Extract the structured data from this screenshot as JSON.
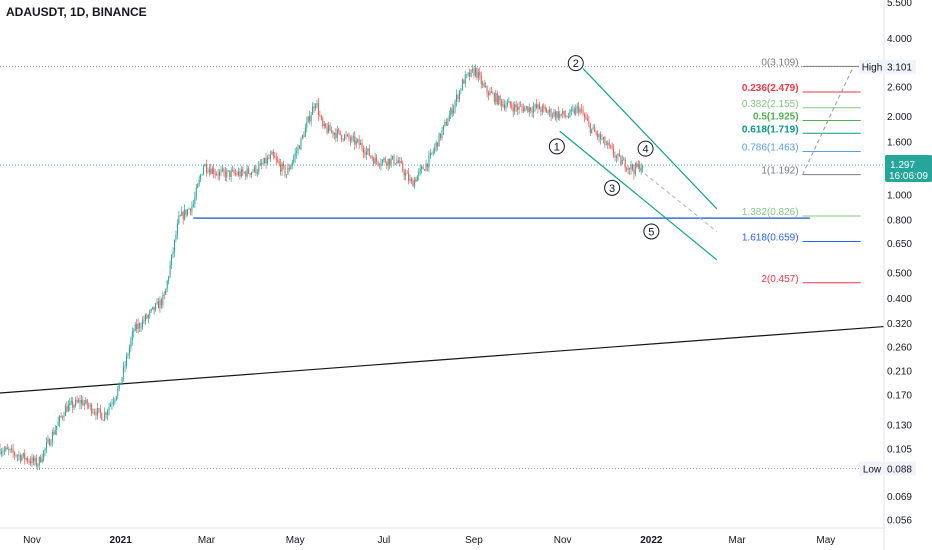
{
  "header": {
    "symbol": "ADAUSDT, 1D, BINANCE"
  },
  "colors": {
    "up": "#26a69a",
    "down": "#ef5350",
    "channel": "#10a490",
    "hline": "#3b6fd8",
    "trendline": "#131722",
    "dotted": "#7a7f88",
    "axis_text": "#131722",
    "price_bg": "#26a69a",
    "fib_gray": "#787b86",
    "fib_red": "#f23645",
    "fib_green": "#4caf50",
    "fib_teal": "#089981",
    "fib_blue": "#5b9cf6",
    "fib_lightgreen": "#81c784",
    "fib_darkblue": "#2962ff"
  },
  "chart_data": {
    "type": "candlestick",
    "title": "ADAUSDT, 1D, BINANCE",
    "scale": "log",
    "ylim": [
      0.052,
      5.6
    ],
    "y_ticks": [
      "5.500",
      "4.000",
      "2.600",
      "2.000",
      "1.600",
      "1.000",
      "0.800",
      "0.650",
      "0.500",
      "0.400",
      "0.320",
      "0.260",
      "0.210",
      "0.170",
      "0.130",
      "0.105",
      "0.069",
      "0.056"
    ],
    "y_tick_values": [
      5.5,
      4.0,
      2.6,
      2.0,
      1.6,
      1.0,
      0.8,
      0.65,
      0.5,
      0.4,
      0.32,
      0.26,
      0.21,
      0.17,
      0.13,
      0.105,
      0.069,
      0.056
    ],
    "x_ticks": [
      "Nov",
      "2021",
      "Mar",
      "May",
      "Jul",
      "Sep",
      "Nov",
      "2022",
      "Mar",
      "May"
    ],
    "x_tick_dates": [
      "2020-11-01",
      "2021-01-01",
      "2021-03-01",
      "2021-05-01",
      "2021-07-01",
      "2021-09-01",
      "2021-11-01",
      "2022-01-01",
      "2022-03-01",
      "2022-05-01"
    ],
    "date_range": [
      "2020-10-10",
      "2022-06-10"
    ],
    "price_path": [
      [
        "2020-10-10",
        0.105
      ],
      [
        "2020-10-25",
        0.098
      ],
      [
        "2020-11-05",
        0.092
      ],
      [
        "2020-11-24",
        0.15
      ],
      [
        "2020-12-05",
        0.16
      ],
      [
        "2020-12-20",
        0.14
      ],
      [
        "2020-12-31",
        0.18
      ],
      [
        "2021-01-10",
        0.3
      ],
      [
        "2021-01-20",
        0.34
      ],
      [
        "2021-01-31",
        0.4
      ],
      [
        "2021-02-10",
        0.8
      ],
      [
        "2021-02-20",
        0.92
      ],
      [
        "2021-02-27",
        1.3
      ],
      [
        "2021-03-10",
        1.2
      ],
      [
        "2021-03-25",
        1.2
      ],
      [
        "2021-04-05",
        1.25
      ],
      [
        "2021-04-15",
        1.4
      ],
      [
        "2021-04-25",
        1.2
      ],
      [
        "2021-05-05",
        1.6
      ],
      [
        "2021-05-15",
        2.3
      ],
      [
        "2021-05-20",
        1.8
      ],
      [
        "2021-06-01",
        1.7
      ],
      [
        "2021-06-15",
        1.55
      ],
      [
        "2021-06-25",
        1.35
      ],
      [
        "2021-07-10",
        1.35
      ],
      [
        "2021-07-20",
        1.1
      ],
      [
        "2021-08-01",
        1.35
      ],
      [
        "2021-08-15",
        2.0
      ],
      [
        "2021-08-25",
        2.75
      ],
      [
        "2021-09-02",
        3.0
      ],
      [
        "2021-09-08",
        2.55
      ],
      [
        "2021-09-20",
        2.25
      ],
      [
        "2021-10-01",
        2.15
      ],
      [
        "2021-10-15",
        2.15
      ],
      [
        "2021-10-25",
        2.05
      ],
      [
        "2021-11-05",
        2.0
      ],
      [
        "2021-11-12",
        2.15
      ],
      [
        "2021-11-20",
        1.8
      ],
      [
        "2021-12-01",
        1.55
      ],
      [
        "2021-12-10",
        1.35
      ],
      [
        "2021-12-20",
        1.25
      ],
      [
        "2021-12-26",
        1.297
      ]
    ],
    "candle_count": 443,
    "seed": 7,
    "current_price": "1.297",
    "countdown": "16:06:09",
    "high_label": "High",
    "high_value": "3.101",
    "low_label": "Low",
    "low_value": "0.088",
    "high_line": 3.101,
    "low_line": 0.088,
    "current_line": 1.297,
    "horizontal_level": {
      "value": 0.81,
      "start": "2021-02-20",
      "end": "2022-04-20"
    },
    "trendline": {
      "p1": [
        "2020-10-10",
        0.172
      ],
      "p2": [
        "2022-06-10",
        0.31
      ]
    },
    "channel_upper": {
      "p1": [
        "2021-11-15",
        3.05
      ],
      "p2": [
        "2022-02-15",
        0.88
      ]
    },
    "channel_lower": {
      "p1": [
        "2021-10-30",
        1.75
      ],
      "p2": [
        "2022-02-15",
        0.56
      ]
    },
    "dashed_projection": {
      "p1": [
        "2021-12-20",
        1.297
      ],
      "p2": [
        "2022-02-15",
        0.72
      ]
    },
    "fib_extension_line": {
      "p1": [
        "2022-04-15",
        1.192
      ],
      "p2": [
        "2022-05-20",
        3.109
      ]
    },
    "wave_labels": [
      {
        "label": "1",
        "date": "2021-10-28",
        "price": 1.53
      },
      {
        "label": "2",
        "date": "2021-11-10",
        "price": 3.2
      },
      {
        "label": "3",
        "date": "2021-12-05",
        "price": 1.06
      },
      {
        "label": "4",
        "date": "2021-12-28",
        "price": 1.5
      },
      {
        "label": "5",
        "date": "2022-01-01",
        "price": 0.72
      }
    ],
    "fib_levels": [
      {
        "label": "0(3.109)",
        "value": 3.109,
        "color": "fib_gray",
        "bold": false
      },
      {
        "label": "0.236(2.479)",
        "value": 2.479,
        "color": "fib_red",
        "bold": true
      },
      {
        "label": "0.382(2.155)",
        "value": 2.155,
        "color": "fib_lightgreen",
        "bold": false
      },
      {
        "label": "0.5(1.925)",
        "value": 1.925,
        "color": "fib_green",
        "bold": true
      },
      {
        "label": "0.618(1.719)",
        "value": 1.719,
        "color": "fib_teal",
        "bold": true
      },
      {
        "label": "0.786(1.463)",
        "value": 1.463,
        "color": "fib_blue",
        "bold": false
      },
      {
        "label": "1(1.192)",
        "value": 1.192,
        "color": "fib_gray",
        "bold": false
      },
      {
        "label": "1.382(0.826)",
        "value": 0.826,
        "color": "fib_lightgreen",
        "bold": false
      },
      {
        "label": "1.618(0.659)",
        "value": 0.659,
        "color": "fib_darkblue",
        "bold": false
      },
      {
        "label": "2(0.457)",
        "value": 0.457,
        "color": "fib_red",
        "bold": false
      }
    ],
    "fib_x_range": [
      "2022-04-15",
      "2022-05-25"
    ]
  }
}
